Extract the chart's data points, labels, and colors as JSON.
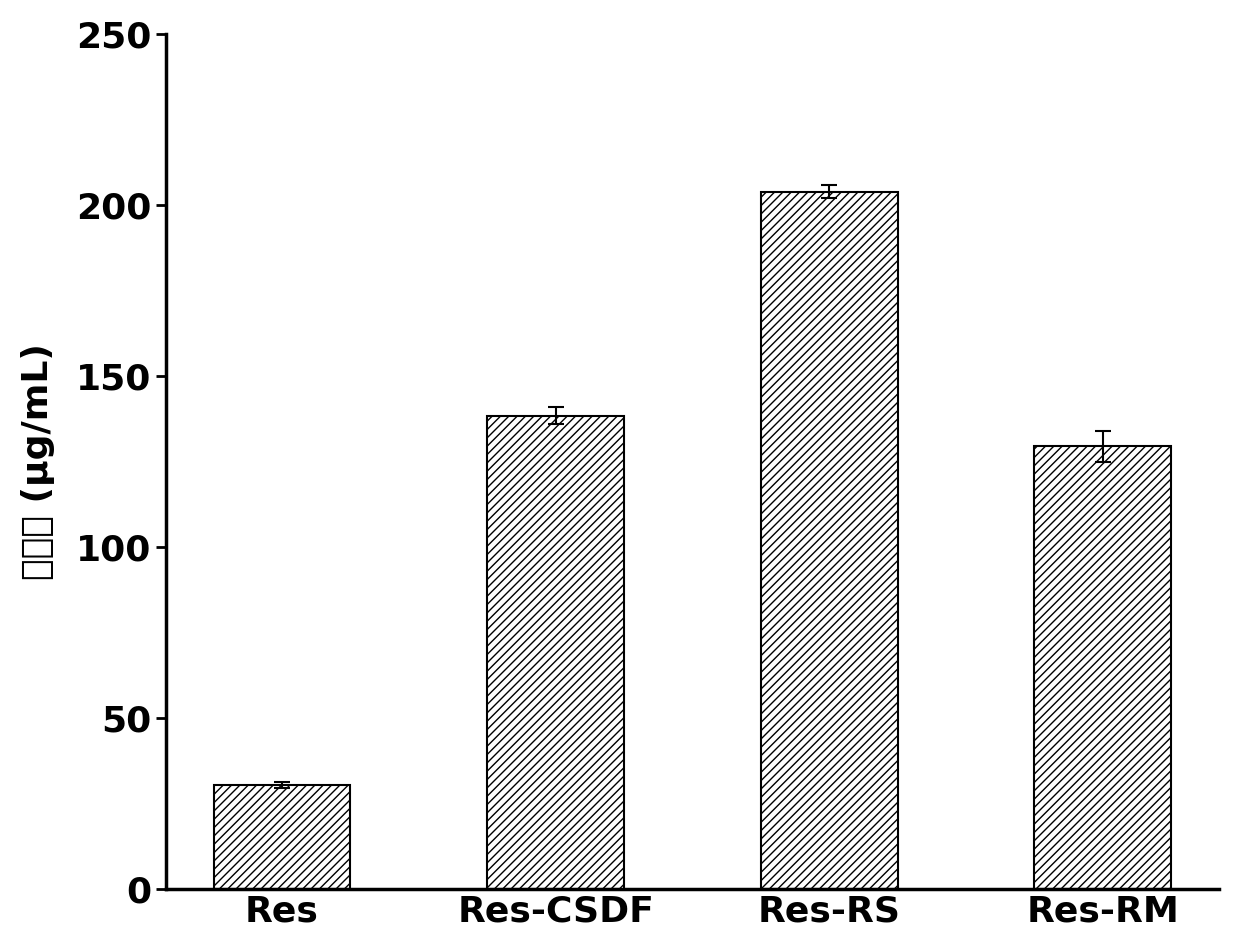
{
  "categories": [
    "Res",
    "Res-CSDF",
    "Res-RS",
    "Res-RM"
  ],
  "values": [
    30.5,
    138.5,
    204.0,
    129.5
  ],
  "errors": [
    1.0,
    2.5,
    2.0,
    4.5
  ],
  "ylabel_chinese": "水溶性",
  "ylabel_unit": " (μg/mL)",
  "ylim": [
    0,
    250
  ],
  "yticks": [
    0,
    50,
    100,
    150,
    200,
    250
  ],
  "bar_color": "white",
  "hatch": "////",
  "edge_color": "#000000",
  "background_color": "#ffffff",
  "bar_width": 0.5,
  "figsize": [
    12.4,
    9.49
  ],
  "dpi": 100,
  "tick_fontsize": 26,
  "label_fontsize": 26,
  "ylabel_fontweight": "bold"
}
